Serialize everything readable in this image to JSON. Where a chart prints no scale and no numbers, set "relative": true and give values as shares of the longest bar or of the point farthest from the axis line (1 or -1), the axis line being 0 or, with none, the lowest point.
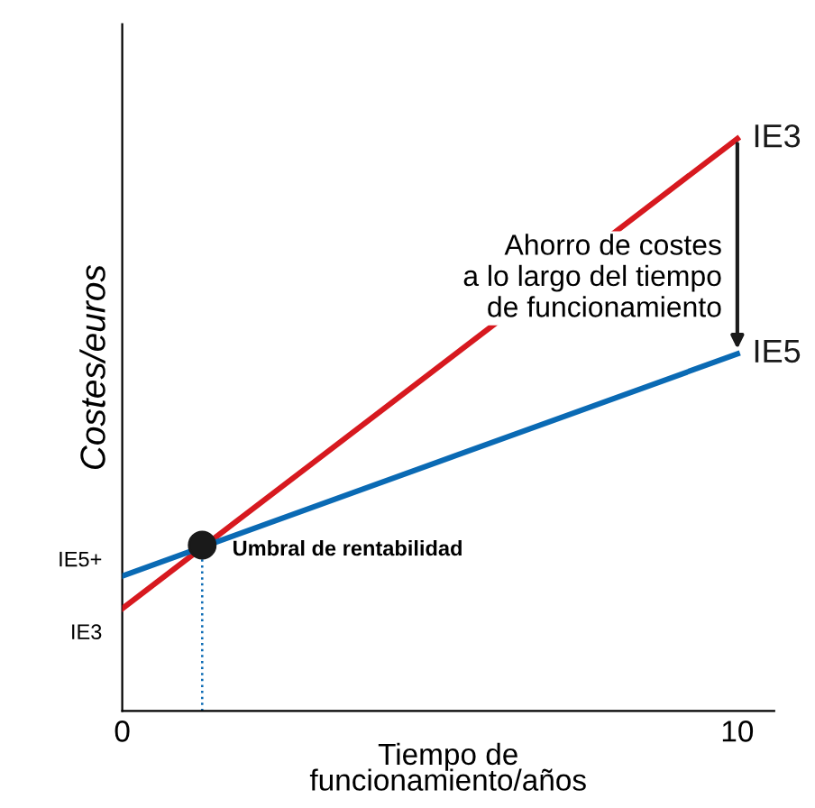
{
  "chart_data": {
    "type": "line",
    "relative": true,
    "xlabel": "Tiempo de\nfuncionamiento/años",
    "ylabel": "Costes/euros",
    "xlim": [
      0,
      10.6
    ],
    "xticks": [
      0,
      10
    ],
    "series": [
      {
        "name": "IE3",
        "color": "#d7191f",
        "x": [
          0,
          10
        ],
        "values": [
          0.179,
          1
        ]
      },
      {
        "name": "IE5",
        "color": "#0a6ab4",
        "x": [
          0,
          10
        ],
        "values": [
          0.236,
          0.624
        ]
      },
      {
        "type": "scatter",
        "color": "#1a1a1a",
        "marker": "circle",
        "x": [
          1.3
        ],
        "values": [
          0.29
        ]
      }
    ],
    "ref_lines": [
      {
        "axis": "x",
        "value": 1.3,
        "color": "#0a6ab4",
        "line_style": "dotted"
      }
    ],
    "annotations": [
      "Umbral de rentabilidad",
      "Ahorro de costes\na lo largo del tiempo\nde funcionamiento",
      "IE5+",
      "IE3"
    ],
    "line_style": "solid",
    "grid": false,
    "legend": false
  }
}
